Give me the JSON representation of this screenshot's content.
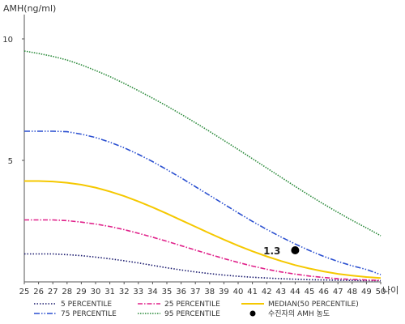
{
  "chart_data": {
    "type": "line",
    "ylabel": "AMH(ng/ml)",
    "xlabel": "나이",
    "ylim": [
      0,
      11
    ],
    "xlim": [
      25,
      50
    ],
    "yticks": [
      5,
      10
    ],
    "x": [
      25,
      26,
      27,
      28,
      29,
      30,
      31,
      32,
      33,
      34,
      35,
      36,
      37,
      38,
      39,
      40,
      41,
      42,
      43,
      44,
      45,
      46,
      47,
      48,
      49,
      50
    ],
    "series": [
      {
        "name": "5 PERCENTILE",
        "color": "#1a1a6e",
        "dash": "1.5,2",
        "values": [
          1.15,
          1.15,
          1.15,
          1.12,
          1.08,
          1.02,
          0.95,
          0.87,
          0.78,
          0.68,
          0.58,
          0.49,
          0.41,
          0.34,
          0.28,
          0.23,
          0.19,
          0.16,
          0.13,
          0.11,
          0.09,
          0.08,
          0.07,
          0.06,
          0.05,
          0.05
        ]
      },
      {
        "name": "25 PERCENTILE",
        "color": "#e0218a",
        "dash": "6,2,1.5,2",
        "values": [
          2.55,
          2.55,
          2.55,
          2.52,
          2.46,
          2.38,
          2.28,
          2.15,
          2.0,
          1.84,
          1.67,
          1.49,
          1.31,
          1.13,
          0.96,
          0.8,
          0.65,
          0.52,
          0.41,
          0.32,
          0.24,
          0.18,
          0.13,
          0.1,
          0.08,
          0.06
        ]
      },
      {
        "name": "MEDIAN(50 PERCENTILE)",
        "color": "#f5c800",
        "dash": "",
        "values": [
          4.15,
          4.15,
          4.13,
          4.08,
          4.0,
          3.88,
          3.72,
          3.53,
          3.31,
          3.07,
          2.81,
          2.54,
          2.27,
          2.0,
          1.74,
          1.49,
          1.26,
          1.05,
          0.86,
          0.69,
          0.55,
          0.43,
          0.33,
          0.26,
          0.2,
          0.16
        ]
      },
      {
        "name": "75 PERCENTILE",
        "color": "#2a4fd0",
        "dash": "7,2,1.5,2,1.5,2",
        "values": [
          6.2,
          6.2,
          6.2,
          6.18,
          6.08,
          5.94,
          5.75,
          5.52,
          5.25,
          4.95,
          4.62,
          4.28,
          3.92,
          3.56,
          3.2,
          2.84,
          2.49,
          2.16,
          1.85,
          1.56,
          1.29,
          1.05,
          0.84,
          0.66,
          0.51,
          0.3
        ]
      },
      {
        "name": "95 PERCENTILE",
        "color": "#2a8a3a",
        "dash": "1.5,1.5",
        "values": [
          9.5,
          9.4,
          9.28,
          9.13,
          8.93,
          8.7,
          8.45,
          8.17,
          7.87,
          7.56,
          7.24,
          6.9,
          6.55,
          6.19,
          5.82,
          5.45,
          5.07,
          4.69,
          4.31,
          3.93,
          3.56,
          3.2,
          2.86,
          2.53,
          2.22,
          1.9
        ]
      }
    ],
    "marker": {
      "label": "1.3",
      "x": 44,
      "y": 1.3,
      "legend": "수진자의 AMH 농도",
      "color": "#000000"
    },
    "legend_position": "bottom"
  }
}
